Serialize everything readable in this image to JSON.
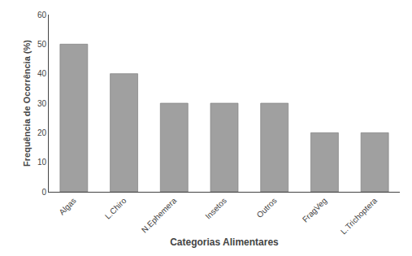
{
  "chart_data": {
    "type": "bar",
    "categories": [
      "Algas",
      "L.Chiro",
      "N.Ephemera",
      "Insetos",
      "Outros",
      "FragVeg",
      "L.Trichoptera"
    ],
    "values": [
      50,
      40,
      30,
      30,
      30,
      20,
      20
    ],
    "color": "#a0a0a0",
    "xlabel": "Categorias Alimentares",
    "ylabel": "Frequência de Ocorrência (%)",
    "ylim": [
      0,
      60
    ],
    "yticks": [
      0,
      10,
      20,
      30,
      40,
      50,
      60
    ],
    "grid": false
  }
}
